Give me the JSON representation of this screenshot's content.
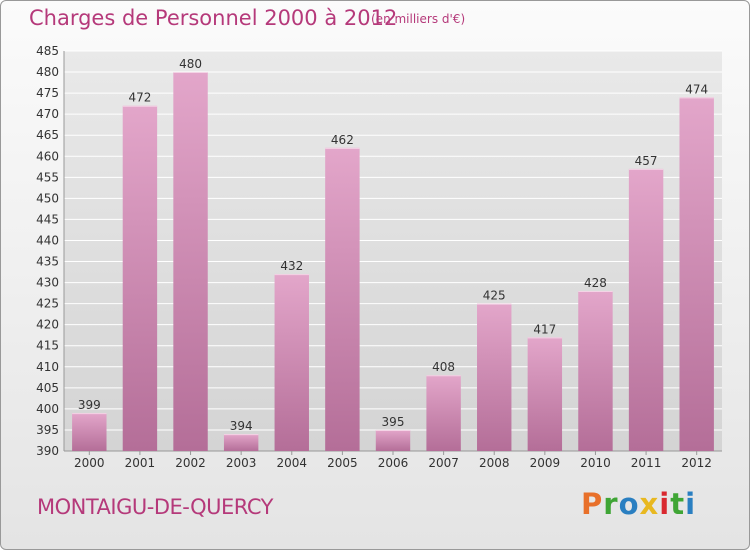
{
  "header": {
    "title": "Charges de Personnel 2000 à 2012",
    "subtitle": "(en milliers d'€)"
  },
  "footer": {
    "commune": "MONTAIGU-DE-QUERCY",
    "logo_text": "Proxiti",
    "logo_colors": [
      "#e8702a",
      "#3fa535",
      "#2a7fc1",
      "#e8b820",
      "#d9282f",
      "#3fa535",
      "#2a7fc1"
    ]
  },
  "colors": {
    "bar_top": "#e3a6ca",
    "bar_bottom": "#b46e98",
    "text": "#333333",
    "grid": "#ffffff"
  },
  "chart_data": {
    "type": "bar",
    "categories": [
      "2000",
      "2001",
      "2002",
      "2003",
      "2004",
      "2005",
      "2006",
      "2007",
      "2008",
      "2009",
      "2010",
      "2011",
      "2012"
    ],
    "values": [
      399,
      472,
      480,
      394,
      432,
      462,
      395,
      408,
      425,
      417,
      428,
      457,
      474
    ],
    "ylim": [
      390,
      485
    ],
    "yticks": [
      390,
      395,
      400,
      405,
      410,
      415,
      420,
      425,
      430,
      435,
      440,
      445,
      450,
      455,
      460,
      465,
      470,
      475,
      480,
      485
    ],
    "grid": true,
    "legend": "none"
  }
}
